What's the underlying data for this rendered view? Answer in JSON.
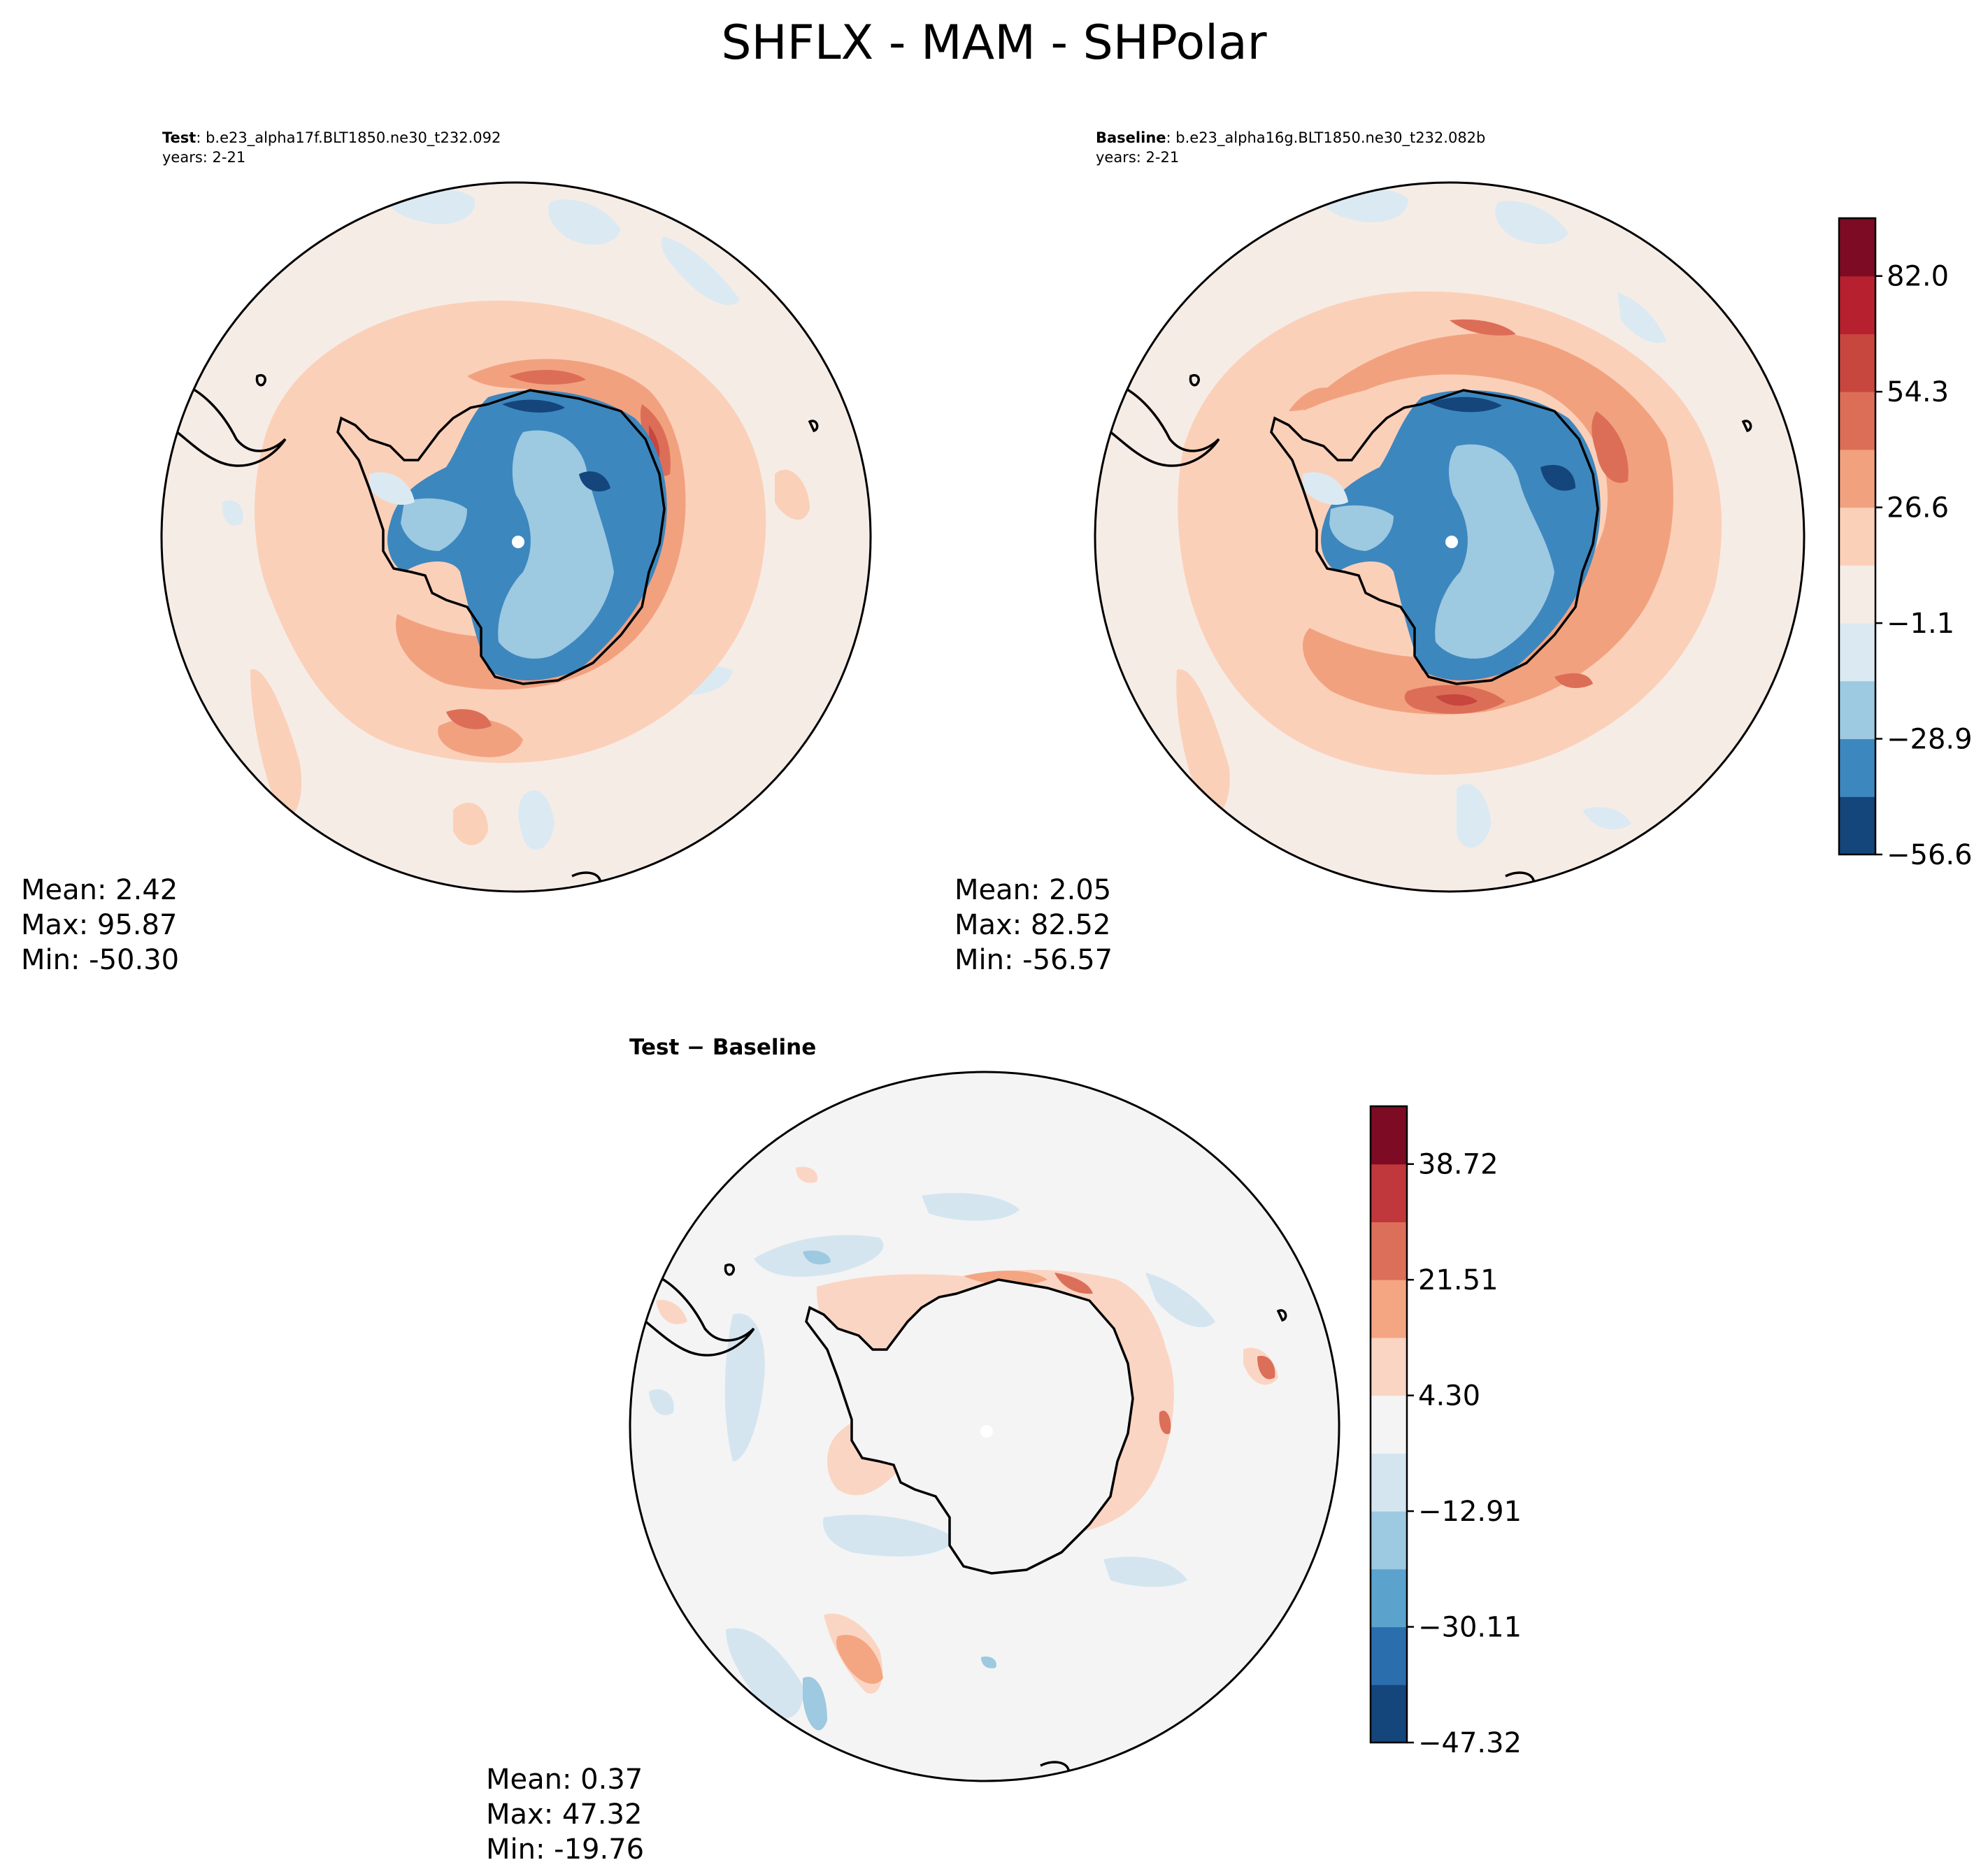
{
  "title": "SHFLX - MAM - SHPolar",
  "panels": {
    "test": {
      "label": "Test",
      "case": ": b.e23_alpha17f.BLT1850.ne30_t232.092",
      "years": "years: 2-21",
      "stats": {
        "mean": "Mean:  2.42",
        "max": "Max: 95.87",
        "min": "Min: -50.30"
      }
    },
    "baseline": {
      "label": "Baseline",
      "case": ": b.e23_alpha16g.BLT1850.ne30_t232.082b",
      "years": "years: 2-21",
      "stats": {
        "mean": "Mean:  2.05",
        "max": "Max: 82.52",
        "min": "Min: -56.57"
      }
    },
    "diff": {
      "title": "Test − Baseline",
      "stats": {
        "mean": "Mean:  0.37",
        "max": "Max: 47.32",
        "min": "Min: -19.76"
      }
    }
  },
  "colorbars": {
    "main": {
      "ticks": [
        "82.0",
        "54.3",
        "26.6",
        "−1.1",
        "−28.9",
        "−56.6"
      ],
      "colors": [
        "#14457b",
        "#3d87bf",
        "#9dc9e1",
        "#dbeaf2",
        "#f6ece6",
        "#fbd0b9",
        "#f2a17f",
        "#dc6e58",
        "#c7463e",
        "#b6202f",
        "#7d0b23"
      ]
    },
    "diff": {
      "ticks": [
        "38.72",
        "21.51",
        "4.30",
        "−12.91",
        "−30.11",
        "−47.32"
      ],
      "colors": [
        "#14457b",
        "#2b6eae",
        "#5ba2cd",
        "#9dc9e1",
        "#d4e5f0",
        "#f4f4f4",
        "#fbd5c3",
        "#f4a582",
        "#dc6f59",
        "#c0383b",
        "#7d0b23"
      ]
    }
  }
}
